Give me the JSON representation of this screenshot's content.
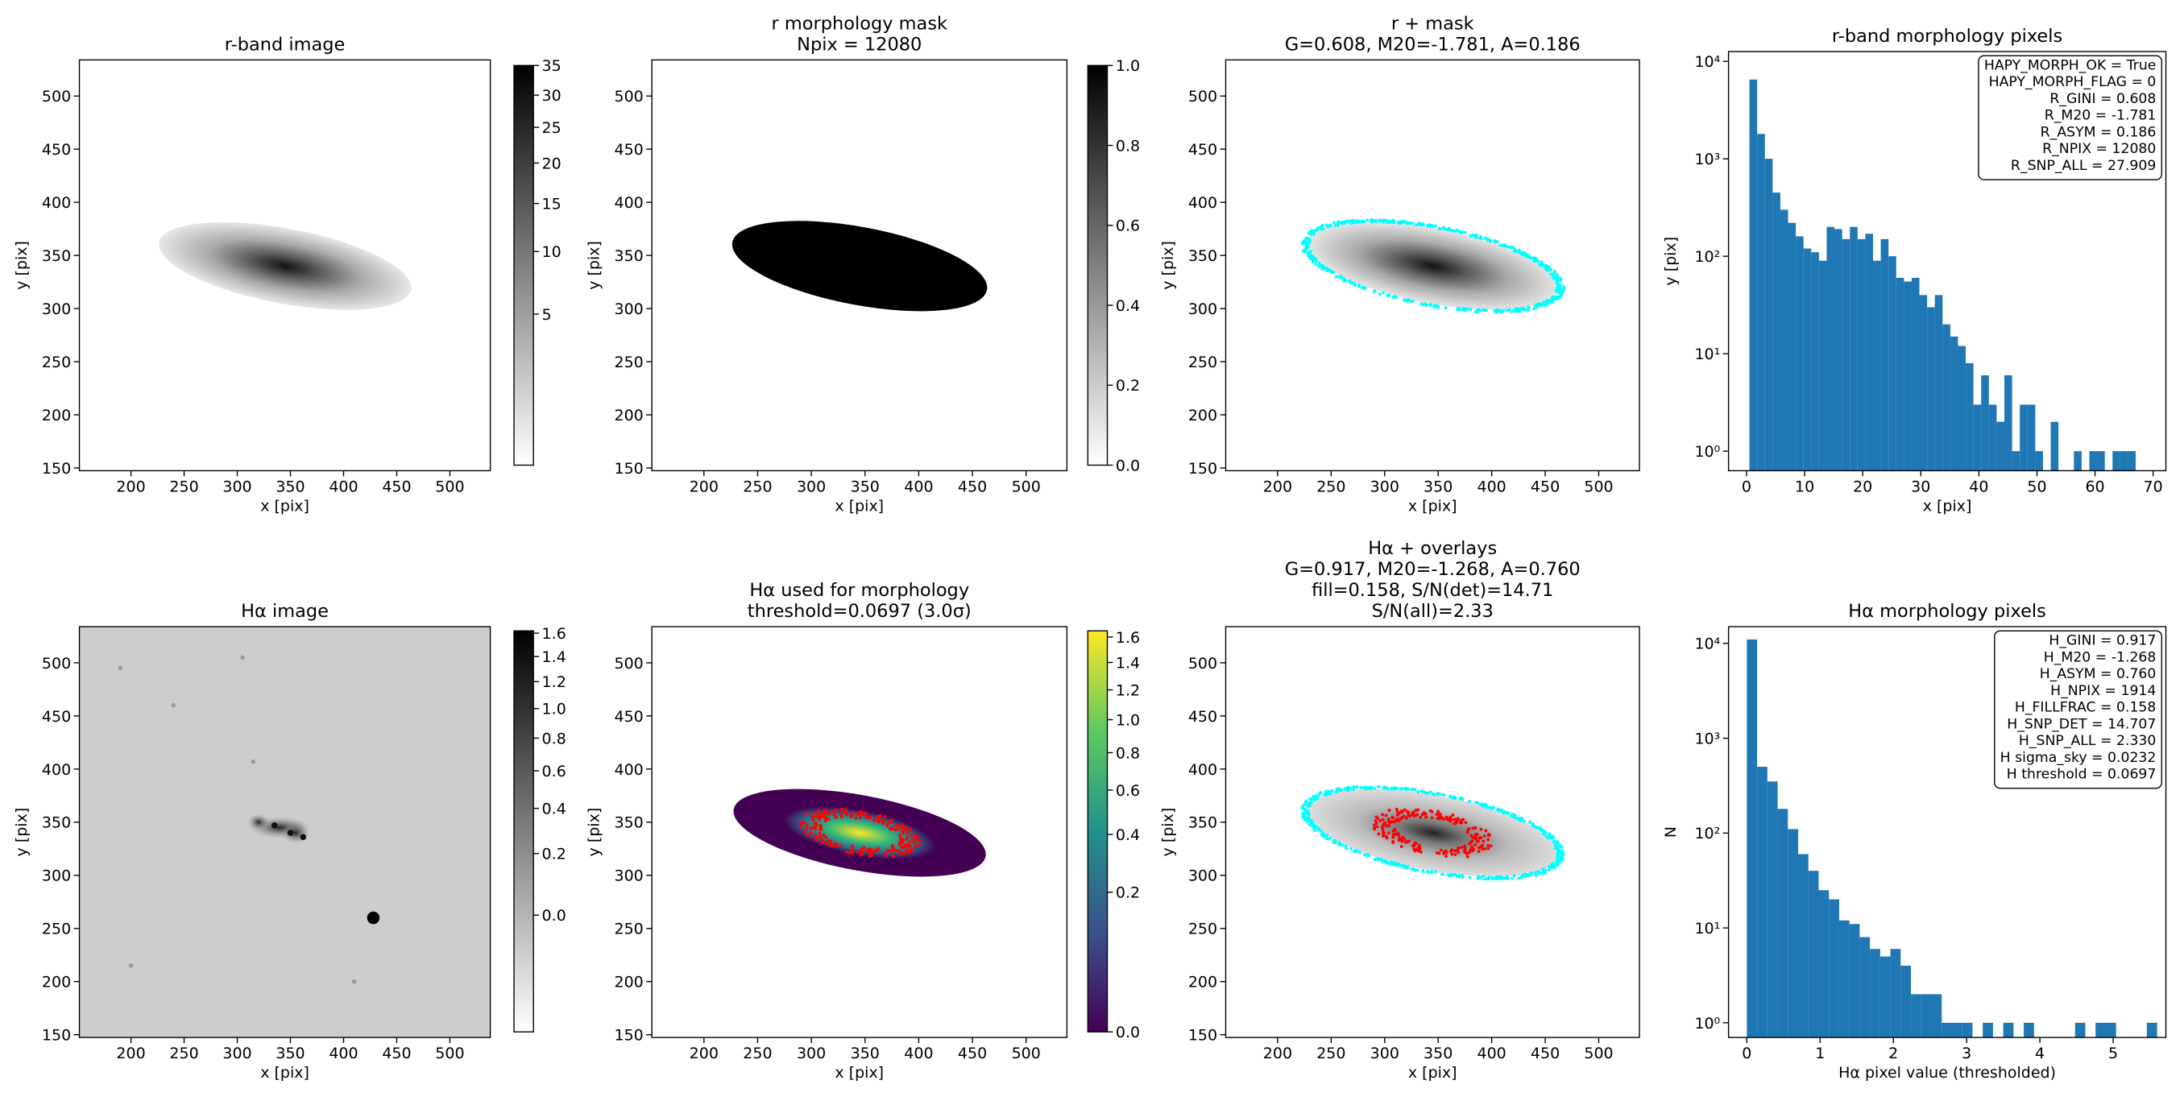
{
  "chart_data": [
    {
      "type": "image",
      "title": [
        "r-band image"
      ],
      "xlabel": "x [pix]",
      "ylabel": "y [pix]",
      "xlim": [
        151.5,
        538
      ],
      "ylim": [
        147.4,
        534
      ],
      "xticks": [
        200,
        250,
        300,
        350,
        400,
        450,
        500
      ],
      "yticks": [
        150,
        200,
        250,
        300,
        350,
        400,
        450,
        500
      ],
      "cmap": "gray_r",
      "colorbar": {
        "lim": [
          0,
          35
        ],
        "scale": "sqrt",
        "ticks": [
          5,
          10,
          15,
          20,
          25,
          30,
          35
        ]
      }
    },
    {
      "type": "image",
      "title": [
        "r morphology mask",
        "Npix = 12080"
      ],
      "xlabel": "x [pix]",
      "ylabel": "y [pix]",
      "xlim": [
        151.5,
        538
      ],
      "ylim": [
        147.4,
        534
      ],
      "xticks": [
        200,
        250,
        300,
        350,
        400,
        450,
        500
      ],
      "yticks": [
        150,
        200,
        250,
        300,
        350,
        400,
        450,
        500
      ],
      "cmap": "gray_r",
      "colorbar": {
        "lim": [
          0,
          1
        ],
        "scale": "linear",
        "ticks": [
          {
            "value": 0,
            "label": "0.0"
          },
          0.2,
          0.4,
          0.6,
          0.8,
          {
            "value": 1,
            "label": "1.0"
          }
        ]
      }
    },
    {
      "type": "image",
      "title": [
        "r + mask",
        "G=0.608, M20=-1.781, A=0.186"
      ],
      "xlabel": "x [pix]",
      "ylabel": "y [pix]",
      "xlim": [
        151.5,
        538
      ],
      "ylim": [
        147.4,
        534
      ],
      "xticks": [
        200,
        250,
        300,
        350,
        400,
        450,
        500
      ],
      "yticks": [
        150,
        200,
        250,
        300,
        350,
        400,
        450,
        500
      ],
      "cmap": "gray_r",
      "contour_colors": [
        "#00ffff"
      ]
    },
    {
      "type": "histogram",
      "title": [
        "r-band morphology pixels"
      ],
      "xlabel": "x [pix]",
      "ylabel": "y [pix]",
      "bins": [
        0.5,
        1.83,
        3.16,
        4.49,
        5.82,
        7.15,
        8.48,
        9.81,
        11.14,
        12.47,
        13.8,
        15.13,
        16.46,
        17.79,
        19.12,
        20.45,
        21.78,
        23.11,
        24.44,
        25.77,
        27.1,
        28.43,
        29.76,
        31.09,
        32.42,
        33.75,
        35.08,
        36.41,
        37.74,
        39.07,
        40.4,
        41.73,
        43.06,
        44.39,
        45.72,
        47.05,
        48.38,
        49.71,
        51.04,
        52.37,
        53.7,
        55.03,
        56.36,
        57.69,
        59.02,
        60.35,
        61.68,
        63.01,
        64.34,
        65.67,
        67.0
      ],
      "values": [
        6500,
        1800,
        1000,
        450,
        300,
        220,
        160,
        120,
        110,
        90,
        200,
        190,
        150,
        200,
        150,
        170,
        90,
        150,
        100,
        60,
        55,
        60,
        40,
        30,
        40,
        20,
        15,
        12,
        8,
        3,
        6,
        3,
        2,
        6,
        1,
        3,
        3,
        1,
        0,
        2,
        0,
        0,
        1,
        0,
        1,
        1,
        0,
        1,
        1,
        1
      ],
      "color": "#1f77b4",
      "xlim": [
        -3.1,
        72.2
      ],
      "ylim": [
        0.63,
        12600
      ],
      "yscale": "log",
      "xticks": [
        0,
        10,
        20,
        30,
        40,
        50,
        60,
        70
      ],
      "yticks": [
        {
          "value": 1,
          "label": "10⁰"
        },
        {
          "value": 10,
          "label": "10¹"
        },
        {
          "value": 100,
          "label": "10²"
        },
        {
          "value": 1000,
          "label": "10³"
        },
        {
          "value": 10000,
          "label": "10⁴"
        }
      ],
      "annotation": [
        "HAPY_MORPH_OK = True",
        "HAPY_MORPH_FLAG = 0",
        "R_GINI = 0.608",
        "R_M20 = -1.781",
        "R_ASYM = 0.186",
        "R_NPIX = 12080",
        "R_SNP_ALL = 27.909"
      ]
    },
    {
      "type": "image",
      "title": [
        "Hα image"
      ],
      "xlabel": "x [pix]",
      "ylabel": "y [pix]",
      "xlim": [
        151.5,
        538
      ],
      "ylim": [
        147.4,
        534
      ],
      "xticks": [
        200,
        250,
        300,
        350,
        400,
        450,
        500
      ],
      "yticks": [
        150,
        200,
        250,
        300,
        350,
        400,
        450,
        500
      ],
      "cmap": "gray_r",
      "colorbar": {
        "lim": [
          -0.15,
          1.62
        ],
        "scale": "sqrt",
        "ticks": [
          {
            "value": 0,
            "label": "0.0"
          },
          0.2,
          0.4,
          0.6,
          0.8,
          {
            "value": 1,
            "label": "1.0"
          },
          1.2,
          1.4,
          1.6
        ]
      }
    },
    {
      "type": "image",
      "title": [
        "Hα used for morphology",
        "threshold=0.0697 (3.0σ)"
      ],
      "xlabel": "x [pix]",
      "ylabel": "y [pix]",
      "xlim": [
        151.5,
        538
      ],
      "ylim": [
        147.4,
        534
      ],
      "xticks": [
        200,
        250,
        300,
        350,
        400,
        450,
        500
      ],
      "yticks": [
        150,
        200,
        250,
        300,
        350,
        400,
        450,
        500
      ],
      "cmap": "viridis",
      "contour_colors": [
        "#ff0000"
      ],
      "colorbar": {
        "lim": [
          0,
          1.65
        ],
        "scale": "sqrt",
        "ticks": [
          {
            "value": 0,
            "label": "0.0"
          },
          0.2,
          0.4,
          0.6,
          0.8,
          {
            "value": 1,
            "label": "1.0"
          },
          1.2,
          1.4,
          1.6
        ]
      }
    },
    {
      "type": "image",
      "title": [
        "Hα + overlays",
        "G=0.917, M20=-1.268, A=0.760",
        "fill=0.158, S/N(det)=14.71",
        "S/N(all)=2.33"
      ],
      "xlabel": "x [pix]",
      "ylabel": "y [pix]",
      "xlim": [
        151.5,
        538
      ],
      "ylim": [
        147.4,
        534
      ],
      "xticks": [
        200,
        250,
        300,
        350,
        400,
        450,
        500
      ],
      "yticks": [
        150,
        200,
        250,
        300,
        350,
        400,
        450,
        500
      ],
      "cmap": "gray_r",
      "contour_colors": [
        "#00ffff",
        "#ff0000"
      ]
    },
    {
      "type": "histogram",
      "title": [
        "Hα morphology pixels"
      ],
      "xlabel": "Hα pixel value (thresholded)",
      "ylabel": "N",
      "bins": [
        0,
        0.14,
        0.28,
        0.42,
        0.56,
        0.7,
        0.84,
        0.98,
        1.12,
        1.26,
        1.4,
        1.54,
        1.68,
        1.82,
        1.96,
        2.1,
        2.24,
        2.38,
        2.52,
        2.66,
        2.8,
        2.94,
        3.08,
        3.22,
        3.36,
        3.5,
        3.64,
        3.78,
        3.92,
        4.06,
        4.2,
        4.34,
        4.48,
        4.62,
        4.76,
        4.9,
        5.04,
        5.18,
        5.32,
        5.46,
        5.6
      ],
      "values": [
        11000,
        500,
        350,
        180,
        110,
        60,
        40,
        25,
        20,
        12,
        11,
        8,
        6,
        5,
        6,
        4,
        2,
        2,
        2,
        1,
        1,
        1,
        0,
        1,
        0,
        1,
        0,
        1,
        0,
        0,
        0,
        0,
        1,
        0,
        1,
        1,
        0,
        0,
        0,
        1
      ],
      "color": "#1f77b4",
      "xlim": [
        -0.25,
        5.72
      ],
      "ylim": [
        0.7,
        15000
      ],
      "yscale": "log",
      "xticks": [
        0,
        1,
        2,
        3,
        4,
        5
      ],
      "yticks": [
        {
          "value": 1,
          "label": "10⁰"
        },
        {
          "value": 10,
          "label": "10¹"
        },
        {
          "value": 100,
          "label": "10²"
        },
        {
          "value": 1000,
          "label": "10³"
        },
        {
          "value": 10000,
          "label": "10⁴"
        }
      ],
      "annotation": [
        "H_GINI = 0.917",
        "H_M20 = -1.268",
        "H_ASYM = 0.760",
        "H_NPIX = 1914",
        "H_FILLFRAC = 0.158",
        "H_SNP_DET = 14.707",
        "H_SNP_ALL = 2.330",
        "H sigma_sky = 0.0232",
        "H threshold = 0.0697"
      ]
    }
  ]
}
